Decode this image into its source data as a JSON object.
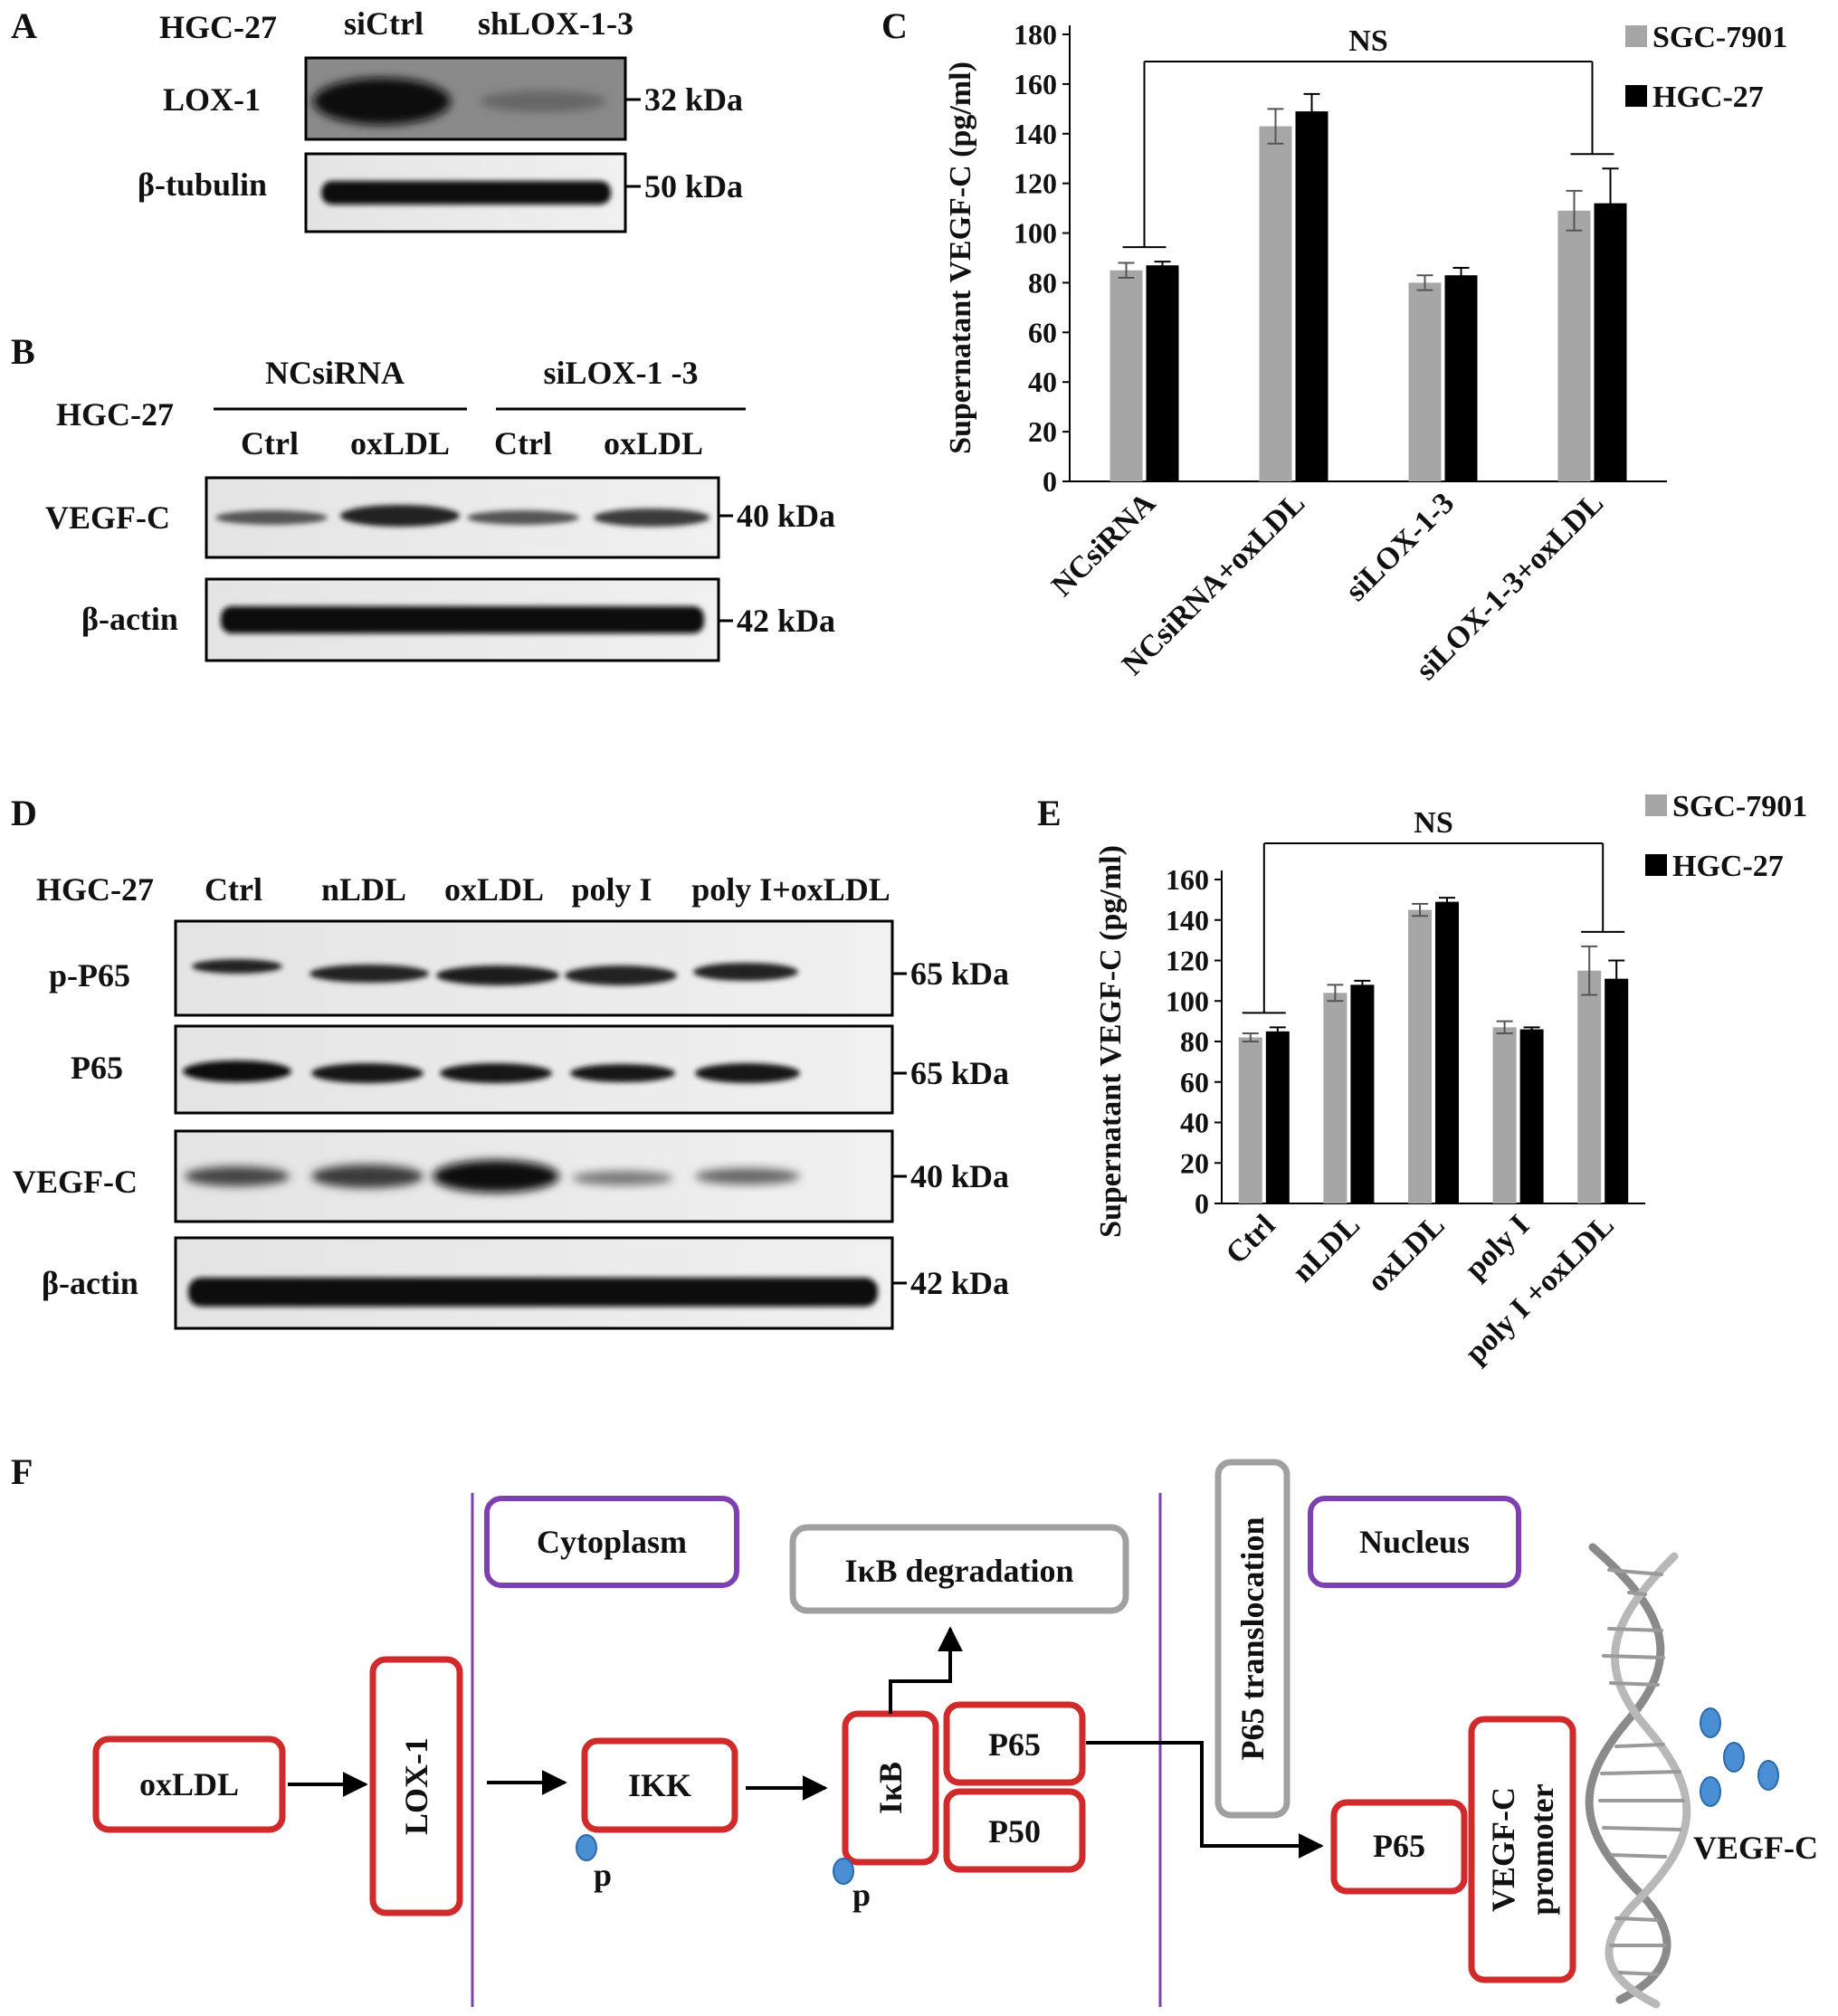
{
  "panels": {
    "A": {
      "letter": "A",
      "cell_line": "HGC-27",
      "lanes": [
        "siCtrl",
        "shLOX-1-3"
      ],
      "rows": [
        {
          "name": "LOX-1",
          "size": "32 kDa"
        },
        {
          "name": "β-tubulin",
          "size": "50 kDa"
        }
      ]
    },
    "B": {
      "letter": "B",
      "cell_line": "HGC-27",
      "groups": [
        "NCsiRNA",
        "siLOX-1 -3"
      ],
      "lanes": [
        "Ctrl",
        "oxLDL",
        "Ctrl",
        "oxLDL"
      ],
      "rows": [
        {
          "name": "VEGF-C",
          "size": "40 kDa"
        },
        {
          "name": "β-actin",
          "size": "42 kDa"
        }
      ]
    },
    "D": {
      "letter": "D",
      "cell_line": "HGC-27",
      "lanes": [
        "Ctrl",
        "nLDL",
        "oxLDL",
        "poly I",
        "poly I+oxLDL"
      ],
      "rows": [
        {
          "name": "p-P65",
          "size": "65 kDa"
        },
        {
          "name": "P65",
          "size": "65 kDa"
        },
        {
          "name": "VEGF-C",
          "size": "40 kDa"
        },
        {
          "name": "β-actin",
          "size": "42 kDa"
        }
      ]
    },
    "F": {
      "letter": "F",
      "compartments": {
        "cytoplasm": "Cytoplasm",
        "nucleus": "Nucleus"
      },
      "nodes": {
        "oxldl": "oxLDL",
        "lox1": "LOX-1",
        "ikk": "IKK",
        "ikb": "IκB",
        "p65": "P65",
        "p50": "P50",
        "ikb_degradation": "IκB degradation",
        "p65_translocation": "P65 translocation",
        "p65_nucleus": "P65",
        "promoter_line1": "VEGF-C",
        "promoter_line2": "promoter",
        "vegfc": "VEGF-C"
      },
      "phospho_label": "p"
    }
  },
  "chart_data": [
    {
      "panel": "C",
      "type": "bar",
      "ylabel": "Supernatant VEGF-C (pg/ml)",
      "ylim": [
        0,
        180
      ],
      "yticks": [
        0,
        20,
        40,
        60,
        80,
        100,
        120,
        140,
        160,
        180
      ],
      "categories": [
        "NCsiRNA",
        "NCsiRNA+oxLDL",
        "siLOX-1-3",
        "siLOX-1-3+oxLDL"
      ],
      "series": [
        {
          "name": "SGC-7901",
          "color": "#a6a6a6",
          "values": [
            85,
            143,
            80,
            109
          ],
          "errors": [
            3,
            7,
            3,
            8
          ]
        },
        {
          "name": "HGC-27",
          "color": "#000000",
          "values": [
            87,
            149,
            83,
            112
          ],
          "errors": [
            1.5,
            7,
            3,
            14
          ]
        }
      ],
      "annotation": "NS",
      "legend": "top-right"
    },
    {
      "panel": "E",
      "type": "bar",
      "ylabel": "Supernatant VEGF-C (pg/ml)",
      "ylim": [
        0,
        160
      ],
      "yticks": [
        0,
        20,
        40,
        60,
        80,
        100,
        120,
        140,
        160
      ],
      "categories": [
        "Ctrl",
        "nLDL",
        "oxLDL",
        "poly I",
        "poly I +oxLDL"
      ],
      "series": [
        {
          "name": "SGC-7901",
          "color": "#a6a6a6",
          "values": [
            82,
            104,
            145,
            87,
            115
          ],
          "errors": [
            2,
            4,
            3,
            3,
            12
          ]
        },
        {
          "name": "HGC-27",
          "color": "#000000",
          "values": [
            85,
            108,
            149,
            86,
            111
          ],
          "errors": [
            2,
            2,
            2,
            1,
            9
          ]
        }
      ],
      "annotation": "NS",
      "legend": "top-right"
    }
  ]
}
